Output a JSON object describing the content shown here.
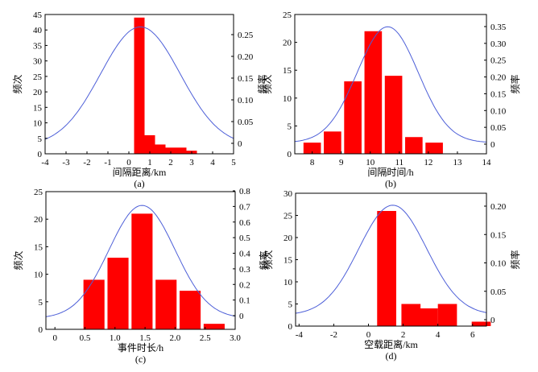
{
  "chart_data": [
    {
      "type": "bar",
      "caption": "(a)",
      "xlabel": "间隔距离/km",
      "ylabel_left": "频次",
      "ylabel_right": "频率",
      "xlim": [
        -4,
        5
      ],
      "xticks": [
        -4,
        -3,
        -2,
        -1,
        0,
        1,
        2,
        3,
        4,
        5
      ],
      "ylim_left": [
        0,
        45
      ],
      "yticks_left": [
        0,
        5,
        10,
        15,
        20,
        25,
        30,
        35,
        40,
        45
      ],
      "yticks_right": [
        0,
        0.05,
        0.1,
        0.15,
        0.2,
        0.25
      ],
      "yticks_right_labels": [
        "0",
        "0.05",
        "0.10",
        "0.15",
        "0.20",
        "0.25"
      ],
      "bar_width": 0.5,
      "x": [
        0.5,
        1.0,
        1.5,
        2.0,
        2.5,
        3.0
      ],
      "values": [
        44,
        6,
        3,
        2,
        2,
        1
      ],
      "curve": {
        "mean": 0.55,
        "sd": 1.9,
        "peak": 41,
        "base": 2.5
      }
    },
    {
      "type": "bar",
      "caption": "(b)",
      "xlabel": "间隔时间/h",
      "ylabel_left": "频次",
      "ylabel_right": "频率",
      "xlim": [
        7.4,
        14
      ],
      "xticks": [
        8,
        9,
        10,
        11,
        12,
        13,
        14
      ],
      "ylim_left": [
        0,
        25
      ],
      "yticks_left": [
        0,
        5,
        10,
        15,
        20,
        25
      ],
      "yticks_right": [
        0,
        0.05,
        0.1,
        0.15,
        0.2,
        0.25,
        0.3,
        0.35
      ],
      "yticks_right_labels": [
        "0",
        "0.05",
        "0.10",
        "0.15",
        "0.20",
        "0.25",
        "0.30",
        "0.35"
      ],
      "bar_width": 0.6,
      "x": [
        8,
        8.7,
        9.4,
        10.1,
        10.8,
        11.5,
        12.2
      ],
      "values": [
        2,
        4,
        13,
        22,
        14,
        3,
        2
      ],
      "curve": {
        "mean": 10.6,
        "sd": 1.05,
        "peak": 22.8,
        "base": 2.0
      }
    },
    {
      "type": "bar",
      "caption": "(c)",
      "xlabel": "事件时长/h",
      "ylabel_left": "频次",
      "ylabel_right": "频率",
      "xlim": [
        -0.15,
        3.0
      ],
      "xticks": [
        0,
        0.5,
        1.0,
        1.5,
        2.0,
        2.5,
        3.0
      ],
      "xticks_labels": [
        "0",
        "0.5",
        "1.0",
        "1.5",
        "2.0",
        "2.5",
        "3.0"
      ],
      "ylim_left": [
        0,
        25
      ],
      "yticks_left": [
        0,
        5,
        10,
        15,
        20,
        25
      ],
      "yticks_right": [
        0,
        0.1,
        0.2,
        0.3,
        0.4,
        0.5,
        0.6,
        0.7,
        0.8
      ],
      "yticks_right_labels": [
        "0",
        "0.1",
        "0.2",
        "0.3",
        "0.4",
        "0.5",
        "0.6",
        "0.7",
        "0.8"
      ],
      "bar_width": 0.35,
      "x": [
        0.65,
        1.05,
        1.45,
        1.85,
        2.25,
        2.65
      ],
      "values": [
        9,
        13,
        21,
        9,
        7,
        1
      ],
      "curve": {
        "mean": 1.45,
        "sd": 0.55,
        "peak": 22.5,
        "base": 2.0
      }
    },
    {
      "type": "bar",
      "caption": "(d)",
      "xlabel": "空载距离/km",
      "ylabel_left": "频次",
      "ylabel_right": "频率",
      "xlim": [
        -4.2,
        6.8
      ],
      "xticks": [
        -4,
        -2,
        0,
        2,
        4,
        6
      ],
      "ylim_left": [
        0,
        30
      ],
      "yticks_left": [
        0,
        5,
        10,
        15,
        20,
        25,
        30
      ],
      "yticks_right": [
        0,
        0.05,
        0.1,
        0.15,
        0.2
      ],
      "yticks_right_labels": [
        "0",
        "0.05",
        "0.10",
        "0.15",
        "0.20"
      ],
      "bar_width": 1.1,
      "x": [
        1.05,
        2.45,
        3.45,
        4.55,
        6.5
      ],
      "values": [
        26,
        5,
        4,
        5,
        1
      ],
      "curve": {
        "mean": 1.4,
        "sd": 1.95,
        "peak": 27.3,
        "base": 2.5
      }
    }
  ],
  "colors": {
    "bar": "#ff0000",
    "curve": "#4d5fd8",
    "axis": "#000000"
  }
}
